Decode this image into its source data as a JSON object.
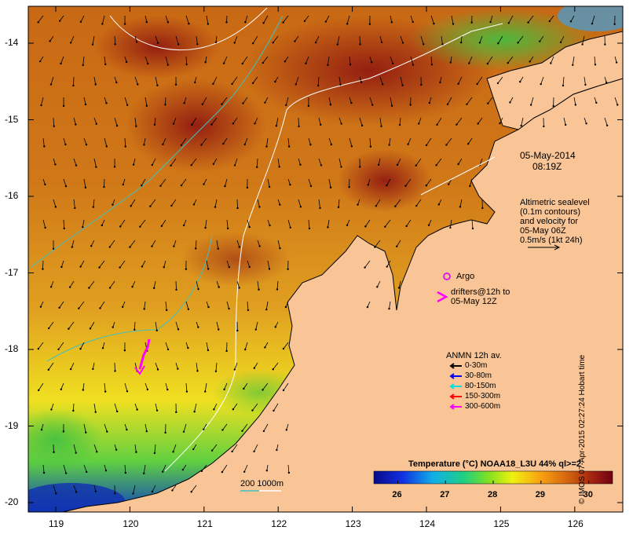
{
  "map": {
    "title": "Temperature (°C) NOAA18_L3U 44% ql>=2",
    "date": "05-May-2014",
    "time": "08:19Z",
    "credit": "© IMOS 07-Apr-2015 02:27:24 Hobart time",
    "x_ticks": [
      "119",
      "120",
      "121",
      "122",
      "123",
      "124",
      "125",
      "126"
    ],
    "y_ticks": [
      "-14",
      "-15",
      "-16",
      "-17",
      "-18",
      "-19",
      "-20"
    ],
    "colorbar_ticks": [
      "26",
      "27",
      "28",
      "29",
      "30"
    ],
    "colorbar_range": [
      25.5,
      30.5
    ],
    "altimetry_note": [
      "Altimetric sealevel",
      "(0.1m contours)",
      "and velocity for",
      "05-May 06Z",
      "0.5m/s (1kt 24h)"
    ],
    "argo_label": "Argo",
    "drifter_label": [
      "drifters@12h to",
      "05-May 12Z"
    ],
    "anmn_title": "ANMN 12h av.",
    "anmn_depths": [
      {
        "label": "0-30m",
        "color": "#000000"
      },
      {
        "label": "30-80m",
        "color": "#0000ff"
      },
      {
        "label": "80-150m",
        "color": "#00e0e0"
      },
      {
        "label": "150-300m",
        "color": "#ff0000"
      },
      {
        "label": "300-600m",
        "color": "#ff00ff"
      }
    ],
    "bathy_label": "200  1000m",
    "colors": {
      "land": "#f9c596",
      "argo": "#e020e0",
      "drifter": "#ff00ff",
      "bathy_200": "#40c0c0",
      "bathy_1000": "#ffffff"
    }
  }
}
